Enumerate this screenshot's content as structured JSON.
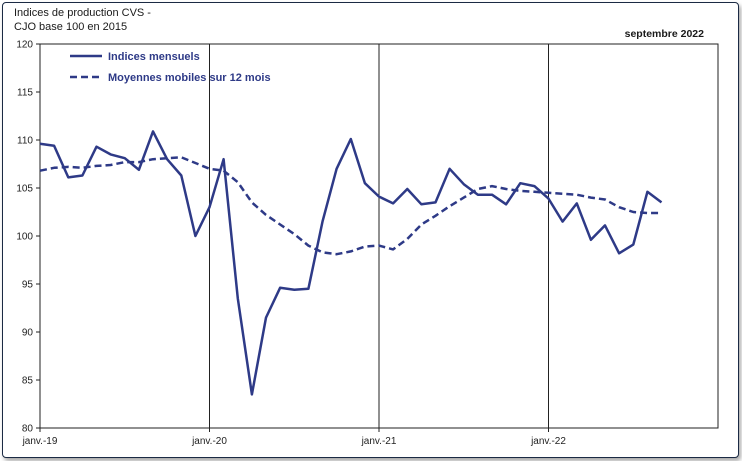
{
  "header": {
    "title_line1": "Indices de production CVS -",
    "title_line2": "CJO base 100 en 2015",
    "period": "septembre 2022"
  },
  "colors": {
    "series": "#2e3a87",
    "grid": "#222222"
  },
  "chart_data": {
    "type": "line",
    "title": "",
    "xlabel": "",
    "ylabel": "",
    "ylim": [
      80,
      120
    ],
    "yticks": [
      80,
      85,
      90,
      95,
      100,
      105,
      110,
      115,
      120
    ],
    "xticks": [
      "janv.-19",
      "janv.-20",
      "janv.-21",
      "janv.-22"
    ],
    "legend_position": "top-left",
    "grid": "vertical lines at each January",
    "x_index_note": "months from janv.-19 (0) to sept.-22 (44)",
    "series": [
      {
        "name": "Indices mensuels",
        "style": "solid",
        "values": [
          109.6,
          109.4,
          106.1,
          106.3,
          109.3,
          108.5,
          108.1,
          106.9,
          110.9,
          108.0,
          106.3,
          100.0,
          103.0,
          108.0,
          93.5,
          83.5,
          91.5,
          94.6,
          94.4,
          94.5,
          101.5,
          107.0,
          110.1,
          105.5,
          104.1,
          103.4,
          104.9,
          103.3,
          103.5,
          107.0,
          105.4,
          104.3,
          104.3,
          103.3,
          105.5,
          105.2,
          103.9,
          101.5,
          103.4,
          99.6,
          101.1,
          98.2,
          99.1,
          104.6,
          103.5
        ]
      },
      {
        "name": "Moyennes mobiles sur 12 mois",
        "style": "dashed",
        "values": [
          106.8,
          107.1,
          107.2,
          107.1,
          107.3,
          107.4,
          107.7,
          107.7,
          108.0,
          108.1,
          108.2,
          107.6,
          107.0,
          106.8,
          105.6,
          103.5,
          102.2,
          101.2,
          100.2,
          99.0,
          98.3,
          98.1,
          98.4,
          98.9,
          99.0,
          98.6,
          99.7,
          101.2,
          102.1,
          103.1,
          104.0,
          104.9,
          105.2,
          104.9,
          104.7,
          104.6,
          104.5,
          104.4,
          104.3,
          104.0,
          103.8,
          103.0,
          102.5,
          102.4,
          102.4
        ]
      }
    ]
  }
}
